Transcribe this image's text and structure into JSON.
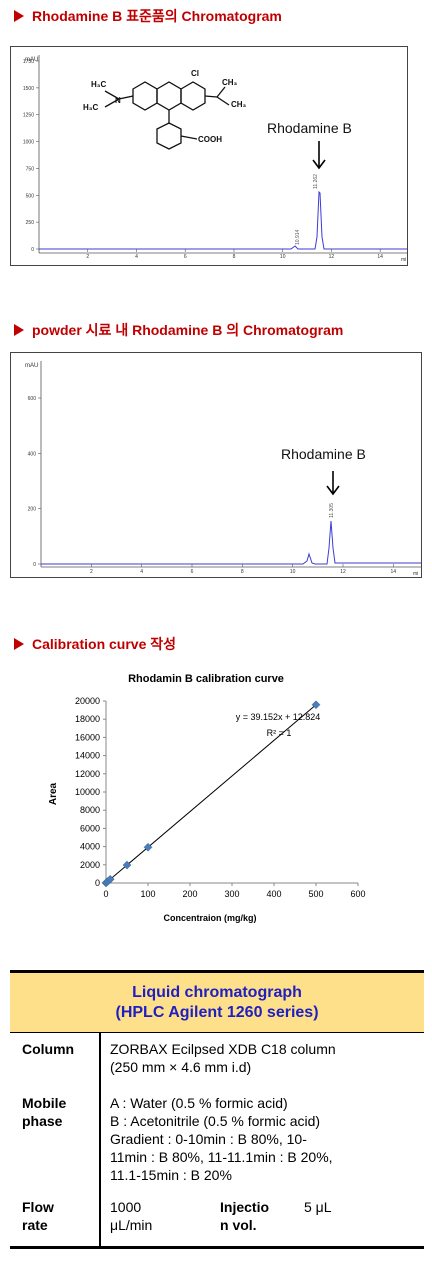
{
  "sections": {
    "s1": "Rhodamine B 표준품의 Chromatogram",
    "s2": "powder 시료 내 Rhodamine B 의 Chromatogram",
    "s3": "Calibration curve 작성"
  },
  "chrom1": {
    "yunit": "mAU",
    "yticks": [
      "1750",
      "1500",
      "1250",
      "1000",
      "750",
      "500",
      "250",
      "0"
    ],
    "xticks": [
      "2",
      "4",
      "6",
      "8",
      "10",
      "12",
      "14"
    ],
    "xunit": "mi",
    "peak_label": "11.262",
    "small_peak_label": "10.914",
    "annotation": "Rhodamine B",
    "structure_labels": {
      "l1": "H₃C",
      "l2": "H₃C",
      "r1": "CH₃",
      "r2": "CH₃",
      "cl": "Cl",
      "n": "N",
      "cooh": "COOH"
    }
  },
  "chrom2": {
    "yunit": "mAU",
    "yticks": [
      "600",
      "400",
      "200",
      "0"
    ],
    "xticks": [
      "2",
      "4",
      "6",
      "8",
      "10",
      "12",
      "14"
    ],
    "xunit": "mi",
    "peak_label": "11.305",
    "annotation": "Rhodamine B"
  },
  "chart_data": {
    "type": "scatter",
    "title": "Rhodamin B calibration curve",
    "xlabel": "Concentraion (mg/kg)",
    "ylabel": "Area",
    "xlim": [
      0,
      600
    ],
    "ylim": [
      0,
      20000
    ],
    "xticks": [
      0,
      100,
      200,
      300,
      400,
      500,
      600
    ],
    "yticks": [
      0,
      2000,
      4000,
      6000,
      8000,
      10000,
      12000,
      14000,
      16000,
      18000,
      20000
    ],
    "series": [
      {
        "x": [
          0,
          1,
          5,
          10,
          50,
          100,
          500
        ],
        "y": [
          13,
          52,
          209,
          404,
          1970,
          3928,
          19589
        ]
      }
    ],
    "trendline": {
      "slope": 39.152,
      "intercept": 12.824
    },
    "equation": "y = 39.152x + 12.824",
    "r2": "R² = 1",
    "grid": false,
    "marker_color": "#4a7ebb"
  },
  "table": {
    "header_line1": "Liquid chromatograph",
    "header_line2": "(HPLC Agilent 1260 series)",
    "header_bg": "#ffe08a",
    "header_color": "#2020c0",
    "rows": {
      "column_label": "Column",
      "column_value_1": "ZORBAX Ecilpsed XDB C18 column",
      "column_value_2": "(250 mm × 4.6 mm i.d)",
      "mobile_label_1": "Mobile",
      "mobile_label_2": "phase",
      "mobile_value_1": "A : Water (0.5 % formic acid)",
      "mobile_value_2": "B : Acetonitrile (0.5 % formic acid)",
      "mobile_value_3": "Gradient : 0-10min : B 80%, 10-",
      "mobile_value_4": "11min : B 80%, 11-11.1min : B 20%,",
      "mobile_value_5": "11.1-15min : B 20%",
      "flow_label_1": "Flow",
      "flow_label_2": "rate",
      "flow_value_1": "1000",
      "flow_value_2": "μL/min",
      "inj_label_1": "Injectio",
      "inj_label_2": "n vol.",
      "inj_value": "5 μL"
    }
  }
}
